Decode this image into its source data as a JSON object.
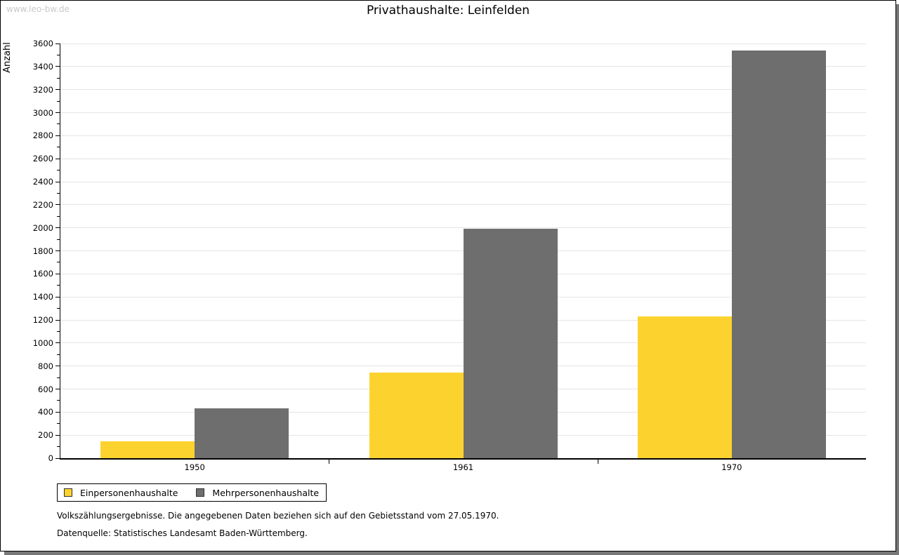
{
  "frame": {
    "watermark": "www.leo-bw.de"
  },
  "chart_data": {
    "type": "bar",
    "title": "Privathaushalte: Leinfelden",
    "xlabel": "",
    "ylabel": "Anzahl",
    "categories": [
      "1950",
      "1961",
      "1970"
    ],
    "series": [
      {
        "name": "Einpersonenhaushalte",
        "color": "#fcd32e",
        "values": [
          145,
          745,
          1230
        ]
      },
      {
        "name": "Mehrpersonenhaushalte",
        "color": "#6e6e6e",
        "values": [
          430,
          1990,
          3540
        ]
      }
    ],
    "ylim": [
      0,
      3600
    ],
    "ytick_step": 200,
    "yminor_step": 100,
    "grid": true,
    "legend_position": "bottom-left"
  },
  "notes": {
    "line1": "Volkszählungsergebnisse. Die angegebenen Daten beziehen sich auf den Gebietsstand vom 27.05.1970.",
    "line2": "Datenquelle: Statistisches Landesamt Baden-Württemberg."
  },
  "colors": {
    "bar_yellow": "#fcd32e",
    "bar_gray": "#6e6e6e",
    "gridline": "#e4e4e4",
    "axis": "#000000",
    "watermark": "#c9c9c9",
    "shadow": "#787878"
  }
}
